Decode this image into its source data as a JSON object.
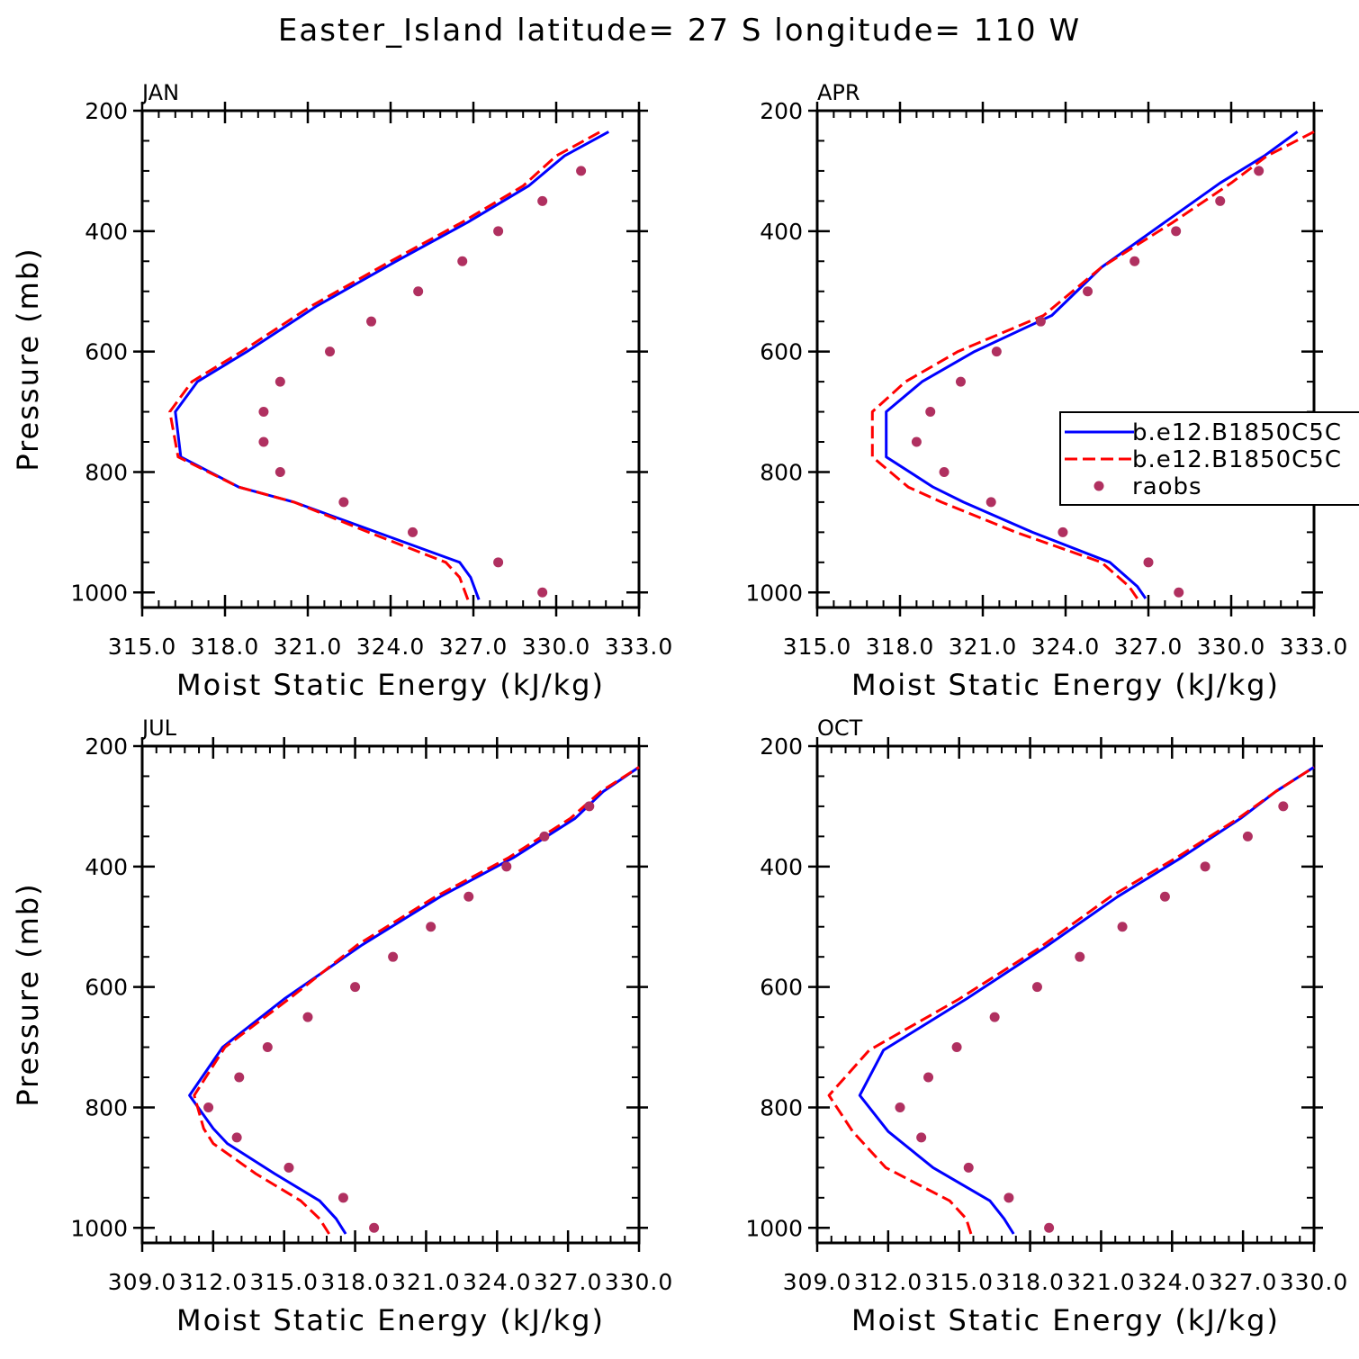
{
  "figure": {
    "title": "Easter_Island  latitude= 27 S longitude= 110 W"
  },
  "legend": {
    "entries": [
      {
        "label": "b.e12.B1850C5C",
        "color": "#0000ff",
        "style": "solid"
      },
      {
        "label": "b.e12.B1850C5C",
        "color": "#ff0000",
        "style": "dashed"
      },
      {
        "label": "raobs",
        "color": "#b03060",
        "style": "marker"
      }
    ]
  },
  "chart_data": [
    {
      "type": "line",
      "panel": "JAN",
      "title": "JAN",
      "xlabel": "Moist Static Energy (kJ/kg)",
      "ylabel": "Pressure (mb)",
      "xlim": [
        315.0,
        333.0
      ],
      "xticks": [
        315.0,
        318.0,
        321.0,
        324.0,
        327.0,
        330.0,
        333.0
      ],
      "xticklabels": [
        "315.0",
        "318.0",
        "321.0",
        "324.0",
        "327.0",
        "330.0",
        "333.0"
      ],
      "ylim": [
        1025,
        200
      ],
      "yticks": [
        200,
        400,
        600,
        800,
        1000
      ],
      "yticklabels": [
        "200",
        "400",
        "600",
        "800",
        "1000"
      ],
      "series": [
        {
          "name": "b.e12.B1850C5C",
          "color": "#0000ff",
          "style": "solid",
          "x": [
            327.2,
            326.9,
            326.5,
            323.5,
            320.5,
            318.5,
            316.4,
            316.2,
            317.0,
            318.8,
            321.3,
            324.2,
            326.8,
            329.0,
            330.3,
            331.9
          ],
          "y": [
            1012,
            975,
            950,
            900,
            850,
            825,
            775,
            700,
            650,
            600,
            525,
            450,
            385,
            325,
            275,
            235
          ]
        },
        {
          "name": "b.e12.B1850C5C",
          "color": "#ff0000",
          "style": "dashed",
          "x": [
            326.8,
            326.5,
            326.0,
            323.2,
            320.5,
            318.5,
            316.3,
            316.0,
            316.8,
            318.6,
            321.1,
            324.0,
            326.6,
            328.8,
            330.0,
            331.6
          ],
          "y": [
            1012,
            975,
            950,
            900,
            850,
            825,
            775,
            700,
            650,
            600,
            525,
            450,
            385,
            325,
            275,
            235
          ]
        },
        {
          "name": "raobs",
          "color": "#b03060",
          "style": "marker",
          "x": [
            329.5,
            327.9,
            324.8,
            322.3,
            320.0,
            319.4,
            319.4,
            320.0,
            321.8,
            323.3,
            325.0,
            326.6,
            327.9,
            329.5,
            330.9
          ],
          "y": [
            1000,
            950,
            900,
            850,
            800,
            750,
            700,
            650,
            600,
            550,
            500,
            450,
            400,
            350,
            300
          ]
        }
      ]
    },
    {
      "type": "line",
      "panel": "APR",
      "title": "APR",
      "xlabel": "Moist Static Energy (kJ/kg)",
      "ylabel": "",
      "xlim": [
        315.0,
        333.0
      ],
      "xticks": [
        315.0,
        318.0,
        321.0,
        324.0,
        327.0,
        330.0,
        333.0
      ],
      "xticklabels": [
        "315.0",
        "318.0",
        "321.0",
        "324.0",
        "327.0",
        "330.0",
        "333.0"
      ],
      "ylim": [
        1025,
        200
      ],
      "yticks": [
        200,
        400,
        600,
        800,
        1000
      ],
      "yticklabels": [
        "200",
        "400",
        "600",
        "800",
        "1000"
      ],
      "series": [
        {
          "name": "b.e12.B1850C5C",
          "color": "#0000ff",
          "style": "solid",
          "x": [
            326.9,
            326.6,
            325.6,
            322.8,
            320.3,
            319.2,
            317.5,
            317.5,
            318.8,
            320.7,
            323.5,
            325.3,
            327.6,
            329.6,
            331.2,
            332.4
          ],
          "y": [
            1010,
            990,
            950,
            900,
            850,
            825,
            775,
            700,
            650,
            600,
            540,
            460,
            385,
            320,
            275,
            235
          ]
        },
        {
          "name": "b.e12.B1850C5C",
          "color": "#ff0000",
          "style": "dashed",
          "x": [
            326.6,
            326.3,
            325.3,
            322.2,
            319.5,
            318.3,
            317.0,
            317.0,
            318.2,
            320.1,
            323.2,
            325.3,
            327.9,
            330.0,
            331.3,
            333.0
          ],
          "y": [
            1010,
            990,
            950,
            900,
            850,
            825,
            775,
            700,
            650,
            600,
            540,
            460,
            385,
            320,
            275,
            235
          ]
        },
        {
          "name": "raobs",
          "color": "#b03060",
          "style": "marker",
          "x": [
            328.1,
            327.0,
            323.9,
            321.3,
            319.6,
            318.6,
            319.1,
            320.2,
            321.5,
            323.1,
            324.8,
            326.5,
            328.0,
            329.6,
            331.0
          ],
          "y": [
            1000,
            950,
            900,
            850,
            800,
            750,
            700,
            650,
            600,
            550,
            500,
            450,
            400,
            350,
            300
          ]
        }
      ]
    },
    {
      "type": "line",
      "panel": "JUL",
      "title": "JUL",
      "xlabel": "Moist Static Energy (kJ/kg)",
      "ylabel": "Pressure (mb)",
      "xlim": [
        309.0,
        330.0
      ],
      "xticks": [
        309.0,
        312.0,
        315.0,
        318.0,
        321.0,
        324.0,
        327.0,
        330.0
      ],
      "xticklabels": [
        "309.0",
        "312.0",
        "315.0",
        "318.0",
        "321.0",
        "324.0",
        "327.0",
        "330.0"
      ],
      "ylim": [
        1025,
        200
      ],
      "yticks": [
        200,
        400,
        600,
        800,
        1000
      ],
      "yticklabels": [
        "200",
        "400",
        "600",
        "800",
        "1000"
      ],
      "series": [
        {
          "name": "b.e12.B1850C5C",
          "color": "#0000ff",
          "style": "solid",
          "x": [
            317.6,
            317.2,
            316.5,
            314.6,
            312.6,
            312.0,
            311.0,
            312.4,
            315.0,
            318.3,
            321.6,
            324.7,
            327.3,
            328.5,
            330.0
          ],
          "y": [
            1010,
            985,
            955,
            910,
            860,
            835,
            780,
            700,
            620,
            530,
            450,
            385,
            320,
            275,
            235
          ]
        },
        {
          "name": "b.e12.B1850C5C",
          "color": "#ff0000",
          "style": "dashed",
          "x": [
            316.9,
            316.5,
            315.7,
            313.8,
            312.0,
            311.6,
            311.2,
            312.5,
            315.2,
            318.1,
            321.4,
            324.5,
            327.1,
            328.4,
            330.0
          ],
          "y": [
            1010,
            985,
            955,
            910,
            860,
            835,
            780,
            700,
            620,
            530,
            450,
            385,
            320,
            275,
            235
          ]
        },
        {
          "name": "raobs",
          "color": "#b03060",
          "style": "marker",
          "x": [
            318.8,
            317.5,
            315.2,
            313.0,
            311.8,
            313.1,
            314.3,
            316.0,
            318.0,
            319.6,
            321.2,
            322.8,
            324.4,
            326.0,
            327.9
          ],
          "y": [
            1000,
            950,
            900,
            850,
            800,
            750,
            700,
            650,
            600,
            550,
            500,
            450,
            400,
            350,
            300
          ]
        }
      ]
    },
    {
      "type": "line",
      "panel": "OCT",
      "title": "OCT",
      "xlabel": "Moist Static Energy (kJ/kg)",
      "ylabel": "",
      "xlim": [
        309.0,
        330.0
      ],
      "xticks": [
        309.0,
        312.0,
        315.0,
        318.0,
        321.0,
        324.0,
        327.0,
        330.0
      ],
      "xticklabels": [
        "309.0",
        "312.0",
        "315.0",
        "318.0",
        "321.0",
        "324.0",
        "327.0",
        "330.0"
      ],
      "ylim": [
        1025,
        200
      ],
      "yticks": [
        200,
        400,
        600,
        800,
        1000
      ],
      "yticklabels": [
        "200",
        "400",
        "600",
        "800",
        "1000"
      ],
      "series": [
        {
          "name": "b.e12.B1850C5C",
          "color": "#0000ff",
          "style": "solid",
          "x": [
            317.3,
            316.9,
            316.3,
            313.9,
            312.0,
            310.8,
            311.8,
            315.3,
            318.6,
            321.7,
            324.4,
            326.9,
            328.4,
            330.0
          ],
          "y": [
            1010,
            985,
            955,
            900,
            840,
            780,
            705,
            620,
            535,
            450,
            385,
            320,
            275,
            235
          ]
        },
        {
          "name": "b.e12.B1850C5C",
          "color": "#ff0000",
          "style": "dashed",
          "x": [
            315.5,
            315.3,
            314.6,
            311.9,
            310.5,
            309.5,
            311.2,
            315.0,
            318.4,
            321.4,
            324.2,
            326.8,
            328.4,
            330.0
          ],
          "y": [
            1010,
            985,
            955,
            900,
            840,
            780,
            705,
            620,
            535,
            450,
            385,
            320,
            275,
            235
          ]
        },
        {
          "name": "raobs",
          "color": "#b03060",
          "style": "marker",
          "x": [
            318.8,
            317.1,
            315.4,
            313.4,
            312.5,
            313.7,
            314.9,
            316.5,
            318.3,
            320.1,
            321.9,
            323.7,
            325.4,
            327.2,
            328.7
          ],
          "y": [
            1000,
            950,
            900,
            850,
            800,
            750,
            700,
            650,
            600,
            550,
            500,
            450,
            400,
            350,
            300
          ]
        }
      ]
    }
  ]
}
